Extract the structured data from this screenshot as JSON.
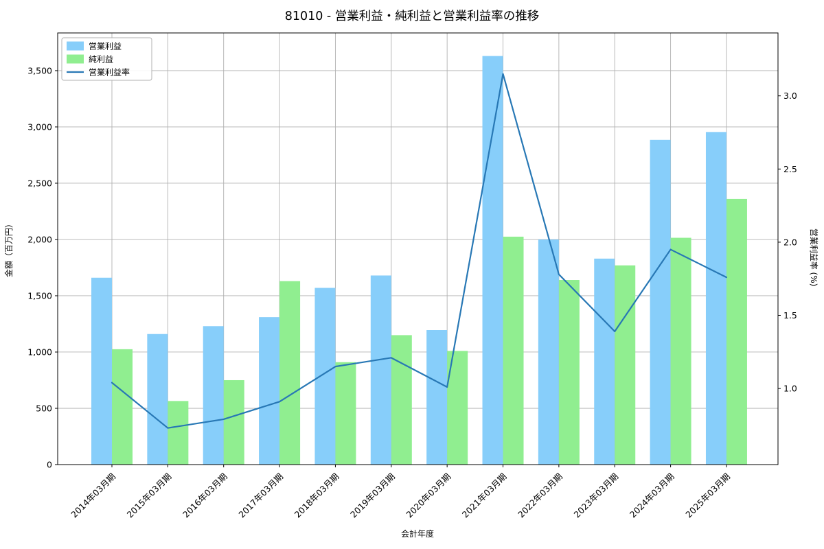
{
  "chart_data": {
    "type": "bar+line",
    "title": "81010 - 営業利益・純利益と営業利益率の推移",
    "xlabel": "会計年度",
    "ylabel_left": "金額（百万円）",
    "ylabel_right": "営業利益率 (%)",
    "categories": [
      "2014年03月期",
      "2015年03月期",
      "2016年03月期",
      "2017年03月期",
      "2018年03月期",
      "2019年03月期",
      "2020年03月期",
      "2021年03月期",
      "2022年03月期",
      "2023年03月期",
      "2024年03月期",
      "2025年03月期"
    ],
    "series": [
      {
        "name": "営業利益",
        "type": "bar",
        "axis": "left",
        "color": "#87CEFA",
        "values": [
          1660,
          1160,
          1230,
          1310,
          1570,
          1680,
          1195,
          3630,
          2000,
          1830,
          2885,
          2955
        ]
      },
      {
        "name": "純利益",
        "type": "bar",
        "axis": "left",
        "color": "#90EE90",
        "values": [
          1025,
          565,
          750,
          1630,
          910,
          1150,
          1010,
          2025,
          1640,
          1770,
          2015,
          2360
        ]
      },
      {
        "name": "営業利益率",
        "type": "line",
        "axis": "right",
        "color": "#2878b5",
        "values": [
          1.04,
          0.73,
          0.79,
          0.91,
          1.15,
          1.21,
          1.01,
          3.15,
          1.78,
          1.39,
          1.95,
          1.76
        ]
      }
    ],
    "left_axis": {
      "range": [
        0,
        3835
      ],
      "ticks": [
        0,
        500,
        1000,
        1500,
        2000,
        2500,
        3000,
        3500
      ],
      "tick_labels": [
        "0",
        "500",
        "1,000",
        "1,500",
        "2,000",
        "2,500",
        "3,000",
        "3,500"
      ]
    },
    "right_axis": {
      "range": [
        0.48,
        3.43
      ],
      "ticks": [
        1.0,
        1.5,
        2.0,
        2.5,
        3.0
      ],
      "tick_labels": [
        "1.0",
        "1.5",
        "2.0",
        "2.5",
        "3.0"
      ]
    },
    "legend_position": "upper left",
    "grid": true
  }
}
